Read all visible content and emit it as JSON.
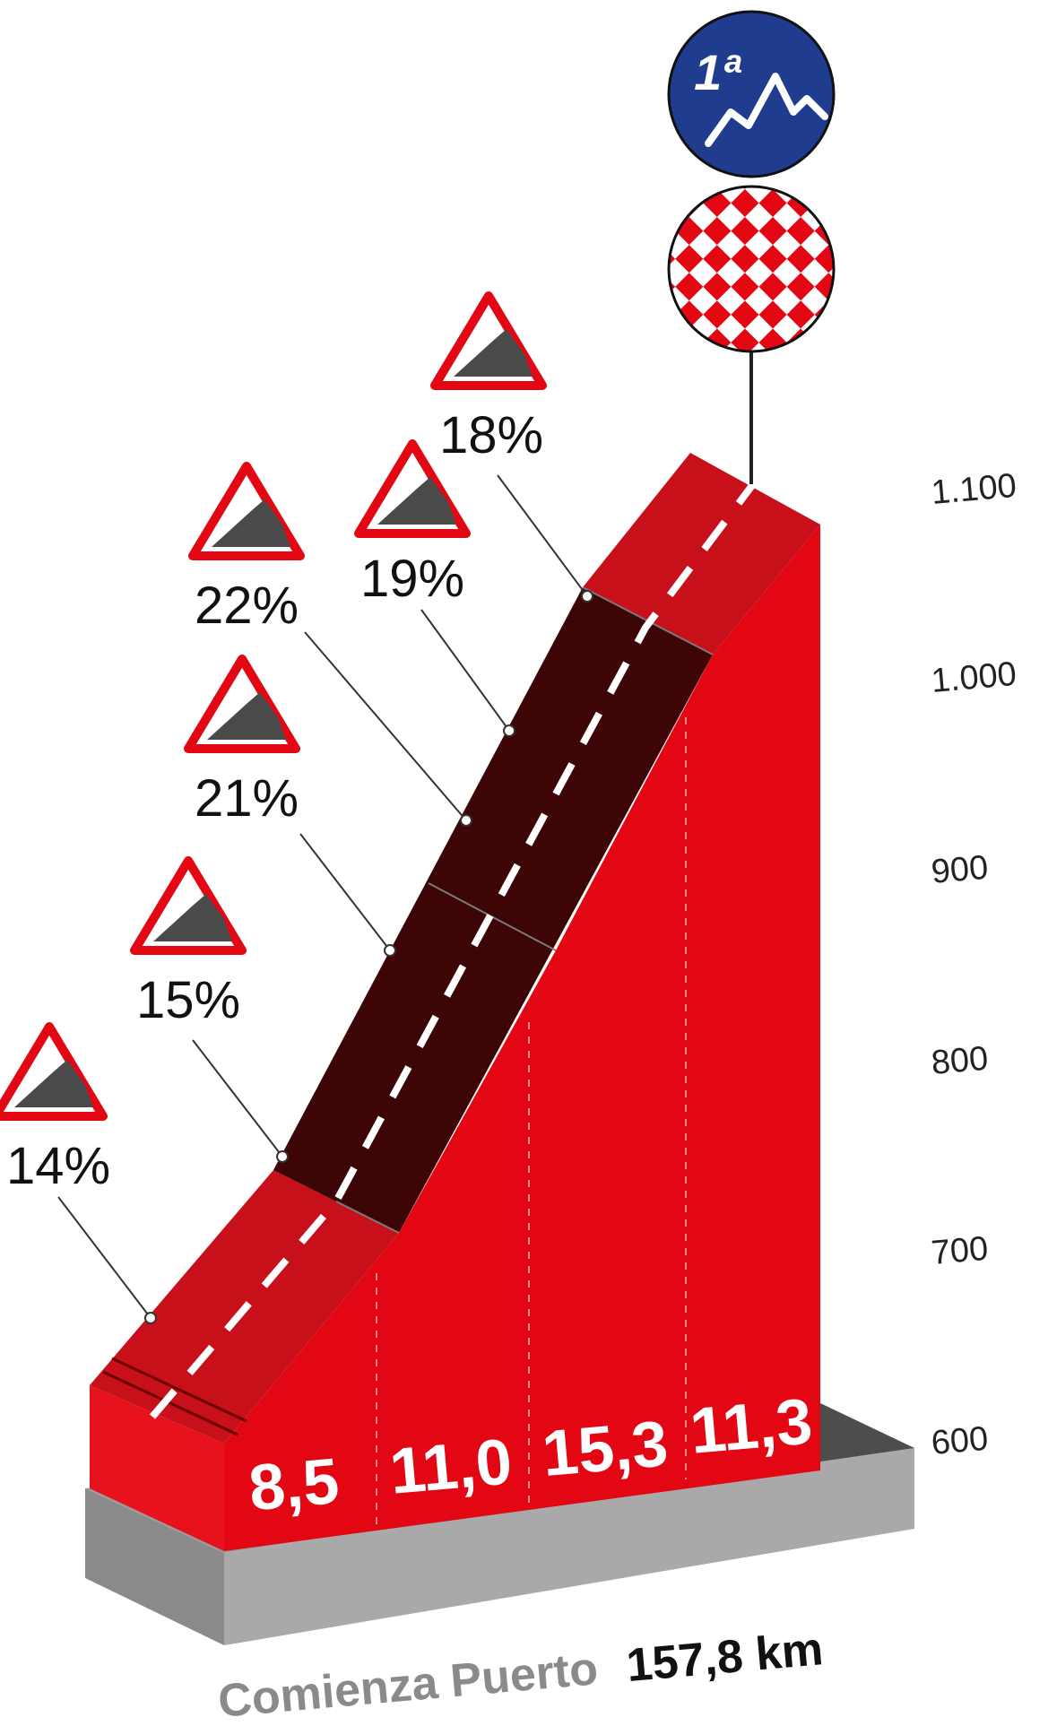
{
  "chart_data": {
    "type": "area",
    "title": "",
    "category_badge": "1ª",
    "colors": {
      "profile_red": "#e30613",
      "profile_dark_red": "#c8101a",
      "steep_section": "#3d0505",
      "base_grey": "#9b9b9b",
      "base_dark_grey": "#4d4d4d",
      "badge_blue": "#1f3c8f"
    },
    "segment_gradients": [
      "8,5",
      "11,0",
      "15,3",
      "11,3"
    ],
    "altitude_ticks": [
      "1.100",
      "1.000",
      "900",
      "800",
      "700",
      "600"
    ],
    "ylim": [
      600,
      1100
    ],
    "max_gradients": [
      {
        "label": "14%",
        "value": 14
      },
      {
        "label": "15%",
        "value": 15
      },
      {
        "label": "21%",
        "value": 21
      },
      {
        "label": "22%",
        "value": 22
      },
      {
        "label": "19%",
        "value": 19
      },
      {
        "label": "18%",
        "value": 18
      }
    ],
    "start_label": "Comienza Puerto",
    "start_km": "157,8 km"
  }
}
